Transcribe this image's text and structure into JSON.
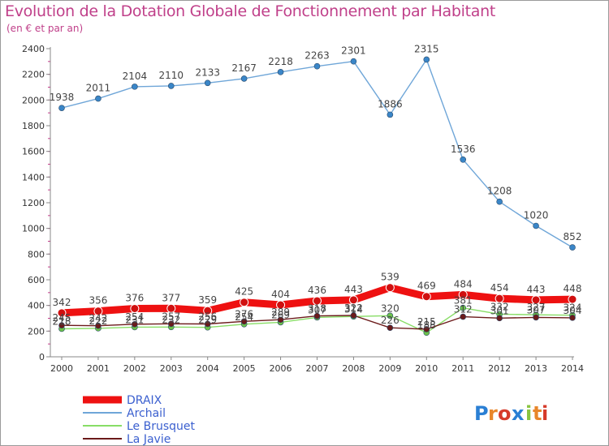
{
  "chart_data": {
    "type": "line",
    "title": "Evolution de la Dotation Globale de Fonctionnement par Habitant",
    "subtitle": "(en € et par an)",
    "x": [
      "2000",
      "2001",
      "2002",
      "2003",
      "2004",
      "2005",
      "2006",
      "2007",
      "2008",
      "2009",
      "2010",
      "2011",
      "2012",
      "2013",
      "2014"
    ],
    "ylim": [
      0,
      2400
    ],
    "yticks": [
      0,
      200,
      400,
      600,
      800,
      1000,
      1200,
      1400,
      1600,
      1800,
      2000,
      2200,
      2400
    ],
    "grid": false,
    "legend_position": "bottom-left",
    "series": [
      {
        "name": "DRAIX",
        "color": "#ee1111",
        "values": [
          342,
          356,
          376,
          377,
          359,
          425,
          404,
          436,
          443,
          539,
          469,
          484,
          454,
          443,
          448
        ],
        "labels": true
      },
      {
        "name": "Archail",
        "color": "#6fa6d8",
        "values": [
          1938,
          2011,
          2104,
          2110,
          2133,
          2167,
          2218,
          2263,
          2301,
          1886,
          2315,
          1536,
          1208,
          1020,
          852
        ],
        "labels": true
      },
      {
        "name": "Le Brusquet",
        "color": "#88dd66",
        "values": [
          218,
          222,
          231,
          232,
          229,
          254,
          269,
          307,
          314,
          320,
          188,
          381,
          332,
          327,
          324
        ],
        "labels": true
      },
      {
        "name": "La Javie",
        "color": "#6b1a1a",
        "values": [
          245,
          242,
          254,
          257,
          256,
          276,
          289,
          318,
          322,
          226,
          215,
          312,
          301,
          307,
          304
        ],
        "labels": true
      }
    ]
  },
  "logo": {
    "text": "Proxiti",
    "letter_colors": [
      "#2a7fd4",
      "#e8862a",
      "#d63a2a",
      "#2a7fd4",
      "#88c440",
      "#e8862a",
      "#d63a2a"
    ]
  }
}
